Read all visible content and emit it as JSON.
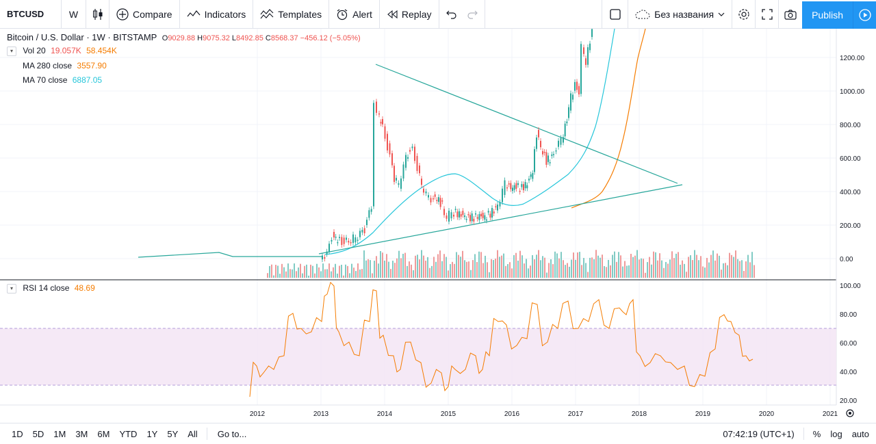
{
  "toolbar": {
    "symbol": "BTCUSD",
    "interval": "W",
    "compare": "Compare",
    "indicators": "Indicators",
    "templates": "Templates",
    "alert": "Alert",
    "replay": "Replay",
    "layout_name": "Без названия",
    "publish": "Publish"
  },
  "legend": {
    "title": "Bitcoin / U.S. Dollar · 1W · BITSTAMP",
    "o_label": "O",
    "o": "9029.88",
    "h_label": "H",
    "h": "9075.32",
    "l_label": "L",
    "l": "8492.85",
    "c_label": "C",
    "c": "8568.37",
    "change": "−456.12 (−5.05%)",
    "vol_label": "Vol 20",
    "vol_value": "19.057K",
    "vol_ma": "58.454K",
    "ma280_label": "MA 280 close",
    "ma280_value": "3557.90",
    "ma70_label": "MA 70 close",
    "ma70_value": "6887.05",
    "rsi_label": "RSI 14 close",
    "rsi_value": "48.69"
  },
  "colors": {
    "up": "#26a69a",
    "down": "#ef5350",
    "ma280": "#f57c00",
    "ma70": "#26c6da",
    "rsi": "#f57c00",
    "rsi_band": "#f3e5f5",
    "publish": "#2196f3"
  },
  "price_axis": [
    "1200.00",
    "1000.00",
    "800.00",
    "600.00",
    "400.00",
    "200.00",
    "0.00"
  ],
  "rsi_axis": [
    "100.00",
    "80.00",
    "60.00",
    "40.00",
    "20.00"
  ],
  "time_axis": [
    "2012",
    "2013",
    "2014",
    "2015",
    "2016",
    "2017",
    "2018",
    "2019",
    "2020",
    "2021"
  ],
  "bottom": {
    "ranges": [
      "1D",
      "5D",
      "1M",
      "3M",
      "6M",
      "YTD",
      "1Y",
      "5Y",
      "All"
    ],
    "goto": "Go to...",
    "time": "07:42:19 (UTC+1)",
    "percent": "%",
    "log": "log",
    "auto": "auto"
  }
}
